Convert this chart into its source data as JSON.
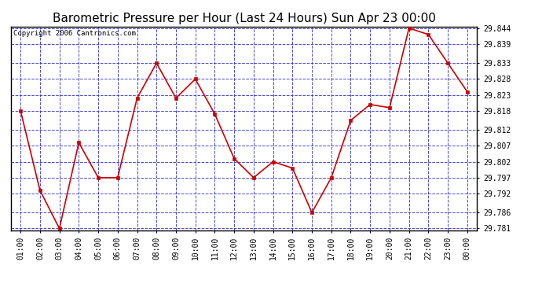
{
  "title": "Barometric Pressure per Hour (Last 24 Hours) Sun Apr 23 00:00",
  "copyright": "Copyright 2006 Cantronics.com",
  "x_labels": [
    "01:00",
    "02:00",
    "03:00",
    "04:00",
    "05:00",
    "06:00",
    "07:00",
    "08:00",
    "09:00",
    "10:00",
    "11:00",
    "12:00",
    "13:00",
    "14:00",
    "15:00",
    "16:00",
    "17:00",
    "18:00",
    "19:00",
    "20:00",
    "21:00",
    "22:00",
    "23:00",
    "00:00"
  ],
  "y_values": [
    29.818,
    29.793,
    29.781,
    29.808,
    29.797,
    29.797,
    29.822,
    29.833,
    29.822,
    29.828,
    29.817,
    29.803,
    29.797,
    29.802,
    29.8,
    29.786,
    29.797,
    29.815,
    29.82,
    29.819,
    29.844,
    29.842,
    29.833,
    29.824
  ],
  "ylim_min": 29.7805,
  "ylim_max": 29.8445,
  "yticks": [
    29.781,
    29.786,
    29.792,
    29.797,
    29.802,
    29.807,
    29.812,
    29.818,
    29.823,
    29.828,
    29.833,
    29.839,
    29.844
  ],
  "line_color": "#cc0000",
  "marker_color": "#cc0000",
  "bg_color": "#ffffff",
  "grid_color": "#3333cc",
  "title_fontsize": 11,
  "copyright_fontsize": 6.5
}
